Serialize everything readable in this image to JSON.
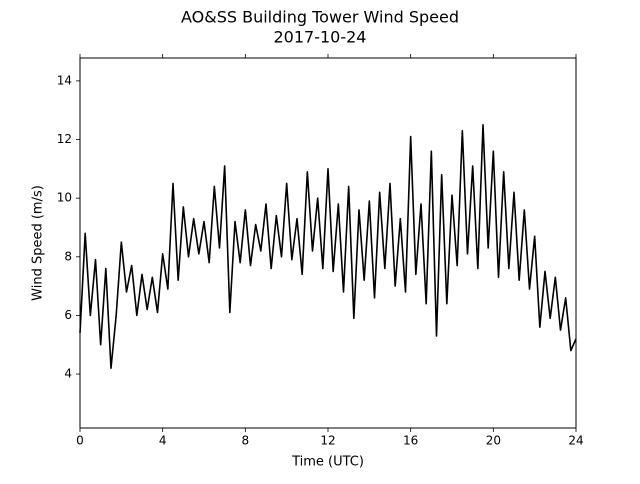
{
  "chart_data": {
    "type": "line",
    "title": "AO&SS Building Tower Wind Speed",
    "subtitle": "2017-10-24",
    "x_label": "Time (UTC)",
    "y_label": "Wind Speed (m/s)",
    "x": [
      0,
      0.25,
      0.5,
      0.75,
      1,
      1.25,
      1.5,
      1.75,
      2,
      2.25,
      2.5,
      2.75,
      3,
      3.25,
      3.5,
      3.75,
      4,
      4.25,
      4.5,
      4.75,
      5,
      5.25,
      5.5,
      5.75,
      6,
      6.25,
      6.5,
      6.75,
      7,
      7.25,
      7.5,
      7.75,
      8,
      8.25,
      8.5,
      8.75,
      9,
      9.25,
      9.5,
      9.75,
      10,
      10.25,
      10.5,
      10.75,
      11,
      11.25,
      11.5,
      11.75,
      12,
      12.25,
      12.5,
      12.75,
      13,
      13.25,
      13.5,
      13.75,
      14,
      14.25,
      14.5,
      14.75,
      15,
      15.25,
      15.5,
      15.75,
      16,
      16.25,
      16.5,
      16.75,
      17,
      17.25,
      17.5,
      17.75,
      18,
      18.25,
      18.5,
      18.75,
      19,
      19.25,
      19.5,
      19.75,
      20,
      20.25,
      20.5,
      20.75,
      21,
      21.25,
      21.5,
      21.75,
      22,
      22.25,
      22.5,
      22.75,
      23,
      23.25,
      23.5,
      23.75,
      24
    ],
    "series": [
      {
        "name": "Wind Speed",
        "color": "#000000",
        "values": [
          5.4,
          8.8,
          6.0,
          7.9,
          5.0,
          7.6,
          4.2,
          6.0,
          8.5,
          6.8,
          7.7,
          6.0,
          7.4,
          6.2,
          7.3,
          6.1,
          8.1,
          6.9,
          10.5,
          7.2,
          9.7,
          8.0,
          9.3,
          8.1,
          9.2,
          7.8,
          10.4,
          8.3,
          11.1,
          6.1,
          9.2,
          7.8,
          9.6,
          7.7,
          9.1,
          8.2,
          9.8,
          7.6,
          9.4,
          8.0,
          10.5,
          7.9,
          9.3,
          7.4,
          10.9,
          8.2,
          10.0,
          7.6,
          11.0,
          7.5,
          9.8,
          6.8,
          10.4,
          5.9,
          9.6,
          7.2,
          9.9,
          6.6,
          10.2,
          7.6,
          10.5,
          7.0,
          9.3,
          6.8,
          12.1,
          7.4,
          9.8,
          6.4,
          11.6,
          5.3,
          10.8,
          6.4,
          10.1,
          7.7,
          12.3,
          8.1,
          11.1,
          7.6,
          12.5,
          8.3,
          11.6,
          7.3,
          10.9,
          7.6,
          10.2,
          7.2,
          9.6,
          6.9,
          8.7,
          5.6,
          7.5,
          5.9,
          7.3,
          5.5,
          6.6,
          4.8,
          5.2
        ]
      }
    ],
    "xlim": [
      0,
      24
    ],
    "xticks": [
      0,
      4,
      8,
      12,
      16,
      20,
      24
    ],
    "ylim": [
      2.16,
      14.78
    ],
    "yticks": [
      4,
      6,
      8,
      10,
      12,
      14
    ],
    "grid": false
  }
}
